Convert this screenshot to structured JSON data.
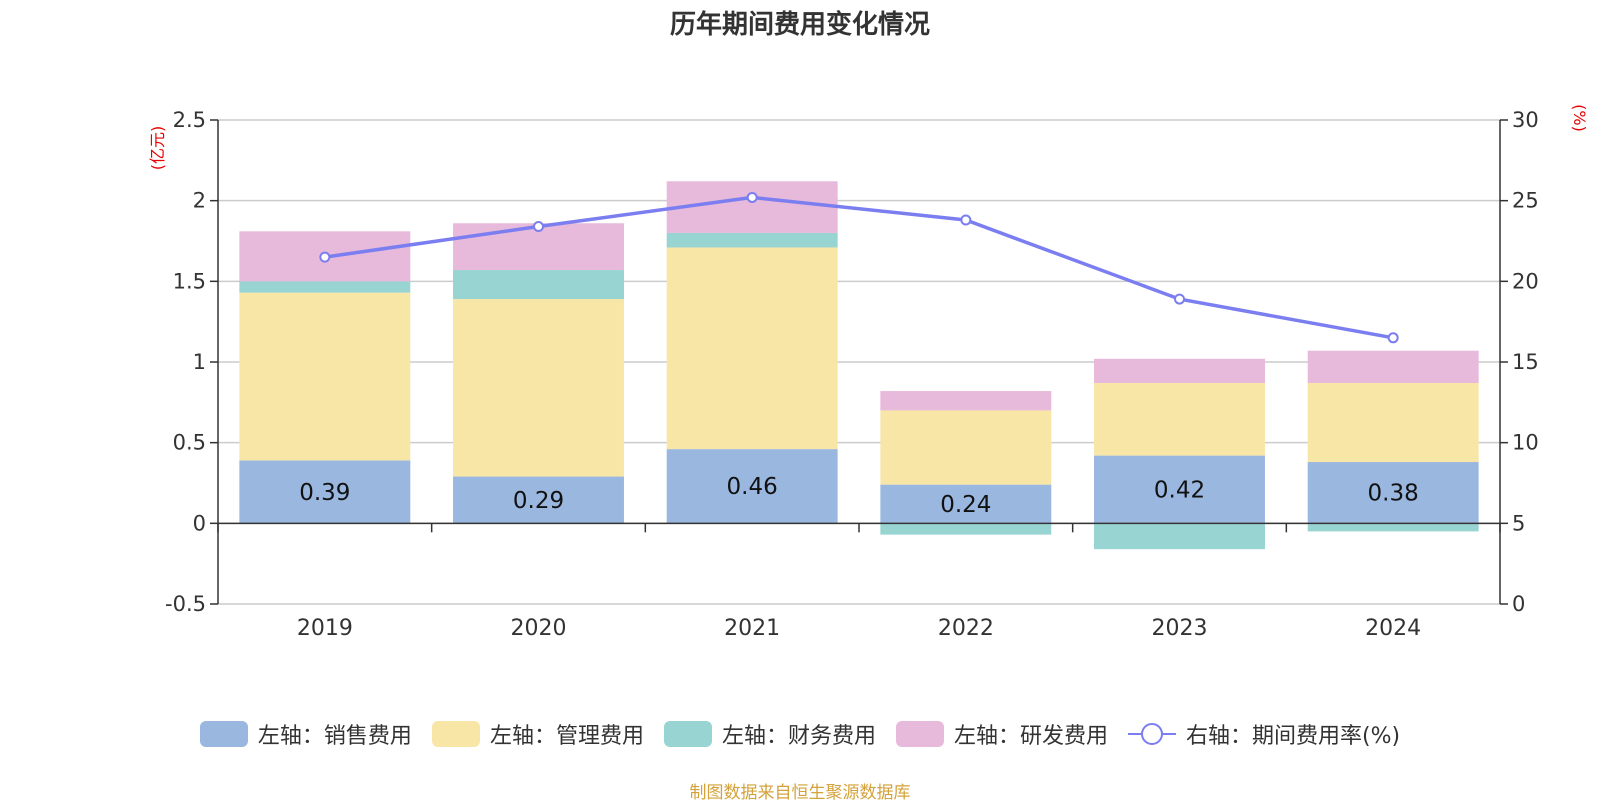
{
  "chart_data": {
    "type": "bar",
    "title": "历年期间费用变化情况",
    "categories": [
      "2019",
      "2020",
      "2021",
      "2022",
      "2023",
      "2024"
    ],
    "left_axis": {
      "unit": "(亿元)",
      "ylim": [
        -0.5,
        2.5
      ],
      "ticks": [
        "2.5",
        "2",
        "1.5",
        "1",
        "0.5",
        "0",
        "-0.5"
      ]
    },
    "right_axis": {
      "unit": "(%)",
      "ylim": [
        0,
        30
      ],
      "ticks": [
        "30",
        "25",
        "20",
        "15",
        "10",
        "5",
        "0"
      ]
    },
    "series": [
      {
        "name": "左轴：销售费用",
        "type": "bar",
        "axis": "left",
        "color": "#9ab7e0",
        "values": [
          0.39,
          0.29,
          0.46,
          0.24,
          0.42,
          0.38
        ],
        "data_labels": [
          "0.39",
          "0.29",
          "0.46",
          "0.24",
          "0.42",
          "0.38"
        ]
      },
      {
        "name": "左轴：管理费用",
        "type": "bar",
        "axis": "left",
        "color": "#f8e6a7",
        "values": [
          1.04,
          1.1,
          1.25,
          0.46,
          0.45,
          0.49
        ]
      },
      {
        "name": "左轴：财务费用",
        "type": "bar",
        "axis": "left",
        "color": "#98d4d2",
        "values": [
          0.07,
          0.18,
          0.09,
          -0.07,
          -0.16,
          -0.05
        ]
      },
      {
        "name": "左轴：研发费用",
        "type": "bar",
        "axis": "left",
        "color": "#e7b9da",
        "values": [
          0.31,
          0.29,
          0.32,
          0.12,
          0.15,
          0.2
        ]
      },
      {
        "name": "右轴：期间费用率(%)",
        "type": "line",
        "axis": "right",
        "color": "#7b7ef0",
        "values": [
          21.5,
          23.4,
          25.2,
          23.8,
          18.9,
          16.5
        ]
      }
    ],
    "legend_position": "bottom",
    "grid": true
  },
  "source_note": "制图数据来自恒生聚源数据库"
}
